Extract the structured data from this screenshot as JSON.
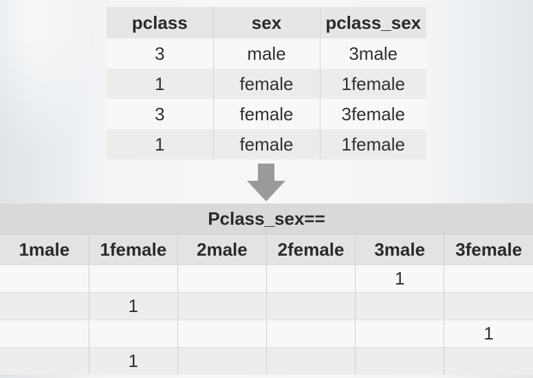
{
  "top_table": {
    "headers": [
      "pclass",
      "sex",
      "pclass_sex"
    ],
    "rows": [
      [
        "3",
        "male",
        "3male"
      ],
      [
        "1",
        "female",
        "1female"
      ],
      [
        "3",
        "female",
        "3female"
      ],
      [
        "1",
        "female",
        "1female"
      ]
    ]
  },
  "arrow": {
    "icon": "down-arrow-icon",
    "color": "#999999"
  },
  "bottom_table": {
    "title": "Pclass_sex==",
    "headers": [
      "1male",
      "1female",
      "2male",
      "2female",
      "3male",
      "3female"
    ],
    "rows": [
      [
        "",
        "",
        "",
        "",
        "1",
        ""
      ],
      [
        "",
        "1",
        "",
        "",
        "",
        ""
      ],
      [
        "",
        "",
        "",
        "",
        "",
        "1"
      ],
      [
        "",
        "1",
        "",
        "",
        "",
        ""
      ]
    ]
  }
}
